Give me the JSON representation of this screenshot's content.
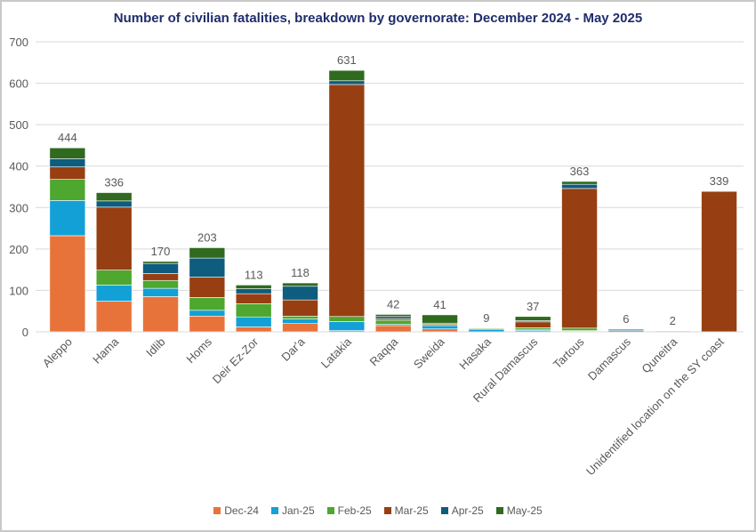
{
  "chart_data": {
    "type": "bar",
    "stacked": true,
    "title": "Number of civilian fatalities, breakdown by governorate: December 2024 - May 2025",
    "xlabel": "",
    "ylabel": "",
    "ylim": [
      0,
      700
    ],
    "yticks": [
      0,
      100,
      200,
      300,
      400,
      500,
      600,
      700
    ],
    "grid": true,
    "legend_position": "bottom",
    "categories": [
      "Aleppo",
      "Hama",
      "Idlib",
      "Homs",
      "Deir Ez-Zor",
      "Dar'a",
      "Latakia",
      "Raqqa",
      "Sweida",
      "Hasaka",
      "Rural Damascus",
      "Tartous",
      "Damascus",
      "Quneitra",
      "Unidentified location on the SY coast"
    ],
    "totals": [
      444,
      336,
      170,
      203,
      113,
      118,
      631,
      42,
      41,
      9,
      37,
      363,
      6,
      2,
      339
    ],
    "series": [
      {
        "name": "Dec-24",
        "color": "#E8733A",
        "values": [
          232,
          74,
          85,
          38,
          12,
          20,
          3,
          15,
          7,
          0,
          3,
          2,
          0,
          0,
          0
        ]
      },
      {
        "name": "Jan-25",
        "color": "#12A0D7",
        "values": [
          85,
          39,
          20,
          14,
          24,
          11,
          22,
          3,
          8,
          6,
          3,
          1,
          3,
          0,
          0
        ]
      },
      {
        "name": "Feb-25",
        "color": "#4EA72E",
        "values": [
          51,
          36,
          19,
          31,
          32,
          7,
          12,
          10,
          3,
          2,
          4,
          6,
          0,
          2,
          0
        ]
      },
      {
        "name": "Mar-25",
        "color": "#973F12",
        "values": [
          30,
          152,
          17,
          49,
          24,
          39,
          560,
          4,
          3,
          0,
          14,
          337,
          0,
          0,
          339
        ]
      },
      {
        "name": "Apr-25",
        "color": "#0E5C7E",
        "values": [
          20,
          15,
          24,
          46,
          12,
          33,
          9,
          5,
          0,
          1,
          3,
          10,
          3,
          0,
          0
        ]
      },
      {
        "name": "May-25",
        "color": "#2F6A1F",
        "values": [
          26,
          20,
          5,
          25,
          9,
          8,
          25,
          5,
          20,
          0,
          10,
          7,
          0,
          0,
          0
        ]
      }
    ]
  }
}
